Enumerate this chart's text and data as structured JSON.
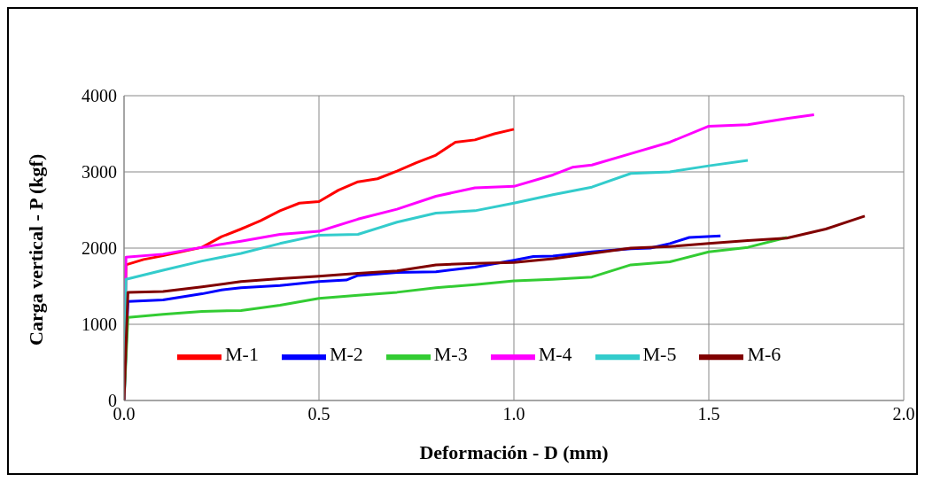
{
  "chart_data": {
    "type": "line",
    "xlabel": "Deformación - D (mm)",
    "ylabel": "Carga vertical - P (kgf)",
    "xlim": [
      0,
      2
    ],
    "xticks": [
      {
        "value": 0,
        "label": "0.0"
      },
      0.5,
      {
        "value": 1,
        "label": "1.0"
      },
      1.5,
      {
        "value": 2,
        "label": "2.0"
      }
    ],
    "ylim": [
      0,
      4000
    ],
    "yticks": [
      0,
      1000,
      2000,
      3000,
      4000
    ],
    "grid": true,
    "legend": "bottom",
    "marker": "none",
    "line_style": "solid",
    "series": [
      {
        "name": "M-1",
        "color": "#ff0000",
        "x": [
          0,
          0.005,
          0.05,
          0.1,
          0.2,
          0.25,
          0.3,
          0.35,
          0.4,
          0.45,
          0.5,
          0.55,
          0.6,
          0.65,
          0.7,
          0.75,
          0.8,
          0.85,
          0.9,
          0.95,
          1.0
        ],
        "values": [
          0,
          1780,
          1850,
          1900,
          2010,
          2150,
          2250,
          2360,
          2490,
          2590,
          2610,
          2760,
          2870,
          2910,
          3010,
          3120,
          3220,
          3390,
          3420,
          3500,
          3560
        ]
      },
      {
        "name": "M-2",
        "color": "#0000ff",
        "x": [
          0,
          0.01,
          0.1,
          0.2,
          0.25,
          0.3,
          0.4,
          0.5,
          0.57,
          0.6,
          0.7,
          0.8,
          0.9,
          1.0,
          1.05,
          1.1,
          1.2,
          1.3,
          1.35,
          1.4,
          1.45,
          1.53
        ],
        "values": [
          0,
          1300,
          1320,
          1400,
          1450,
          1480,
          1510,
          1560,
          1580,
          1640,
          1680,
          1690,
          1750,
          1840,
          1890,
          1895,
          1950,
          1990,
          2000,
          2060,
          2140,
          2160
        ]
      },
      {
        "name": "M-3",
        "color": "#33cc33",
        "x": [
          0,
          0.01,
          0.1,
          0.2,
          0.3,
          0.4,
          0.5,
          0.6,
          0.7,
          0.8,
          0.9,
          1.0,
          1.1,
          1.2,
          1.3,
          1.4,
          1.5,
          1.6,
          1.7
        ],
        "values": [
          0,
          1090,
          1130,
          1170,
          1180,
          1250,
          1340,
          1380,
          1420,
          1480,
          1520,
          1570,
          1590,
          1620,
          1780,
          1820,
          1950,
          2010,
          2140
        ]
      },
      {
        "name": "M-4",
        "color": "#ff00ff",
        "x": [
          0,
          0.005,
          0.1,
          0.2,
          0.3,
          0.4,
          0.5,
          0.6,
          0.7,
          0.8,
          0.9,
          1.0,
          1.1,
          1.15,
          1.2,
          1.3,
          1.4,
          1.5,
          1.6,
          1.7,
          1.77
        ],
        "values": [
          0,
          1880,
          1920,
          2010,
          2090,
          2180,
          2220,
          2380,
          2510,
          2680,
          2790,
          2810,
          2960,
          3060,
          3090,
          3240,
          3390,
          3600,
          3620,
          3700,
          3750
        ]
      },
      {
        "name": "M-5",
        "color": "#33cccc",
        "x": [
          0,
          0.005,
          0.1,
          0.2,
          0.3,
          0.4,
          0.5,
          0.6,
          0.7,
          0.8,
          0.9,
          1.0,
          1.1,
          1.2,
          1.3,
          1.4,
          1.5,
          1.6
        ],
        "values": [
          0,
          1590,
          1710,
          1830,
          1930,
          2060,
          2170,
          2180,
          2340,
          2460,
          2490,
          2590,
          2700,
          2800,
          2980,
          3000,
          3080,
          3150
        ]
      },
      {
        "name": "M-6",
        "color": "#800000",
        "x": [
          0,
          0.01,
          0.1,
          0.2,
          0.3,
          0.4,
          0.5,
          0.6,
          0.7,
          0.8,
          0.9,
          1.0,
          1.1,
          1.2,
          1.3,
          1.4,
          1.5,
          1.6,
          1.7,
          1.8,
          1.9
        ],
        "values": [
          0,
          1420,
          1430,
          1490,
          1560,
          1600,
          1630,
          1670,
          1700,
          1780,
          1800,
          1810,
          1860,
          1930,
          2000,
          2020,
          2060,
          2100,
          2130,
          2250,
          2420
        ]
      }
    ]
  }
}
